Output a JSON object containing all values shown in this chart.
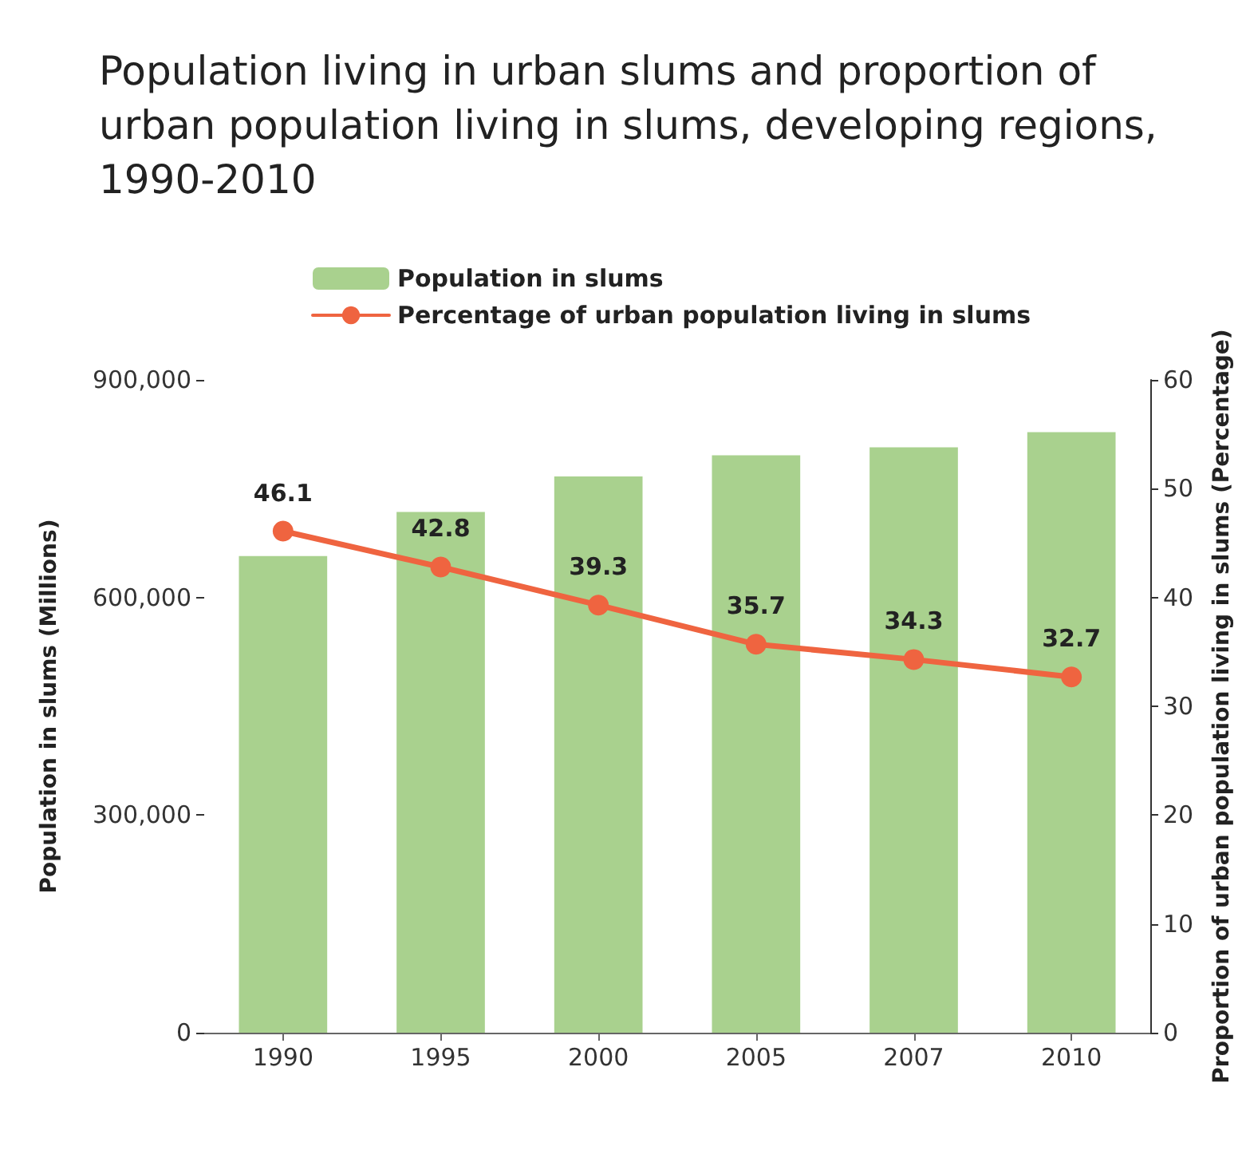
{
  "chart_data": {
    "type": "bar",
    "title": "Population living in urban slums and proportion of urban population living in slums, developing regions, 1990-2010",
    "categories": [
      "1990",
      "1995",
      "2000",
      "2005",
      "2007",
      "2010"
    ],
    "series": [
      {
        "name": "Population in slums",
        "color": "#a9d18e",
        "values": [
          657000,
          718000,
          767000,
          796000,
          807000,
          828000
        ]
      },
      {
        "name": "Percentage of urban population living in slums",
        "type": "line",
        "axis": "y2",
        "color": "#ef6440",
        "values": [
          46.1,
          42.8,
          39.3,
          35.7,
          34.3,
          32.7
        ],
        "value_labels": [
          "46.1",
          "42.8",
          "39.3",
          "35.7",
          "34.3",
          "32.7"
        ]
      }
    ],
    "ylabel": "Population in slums (Millions)",
    "y2label": "Proportion of urban population living in slums (Percentage)",
    "ylim": [
      0,
      900000
    ],
    "yticks": [
      {
        "value": 0,
        "label": "0"
      },
      {
        "value": 300000,
        "label": "300,000"
      },
      {
        "value": 600000,
        "label": "600,000"
      },
      {
        "value": 900000,
        "label": "900,000"
      }
    ],
    "y2lim": [
      0,
      60
    ],
    "y2ticks": [
      0,
      10,
      20,
      30,
      40,
      50,
      60
    ],
    "legend": "top",
    "grid": false,
    "marker": "circle",
    "line_style": "solid"
  }
}
